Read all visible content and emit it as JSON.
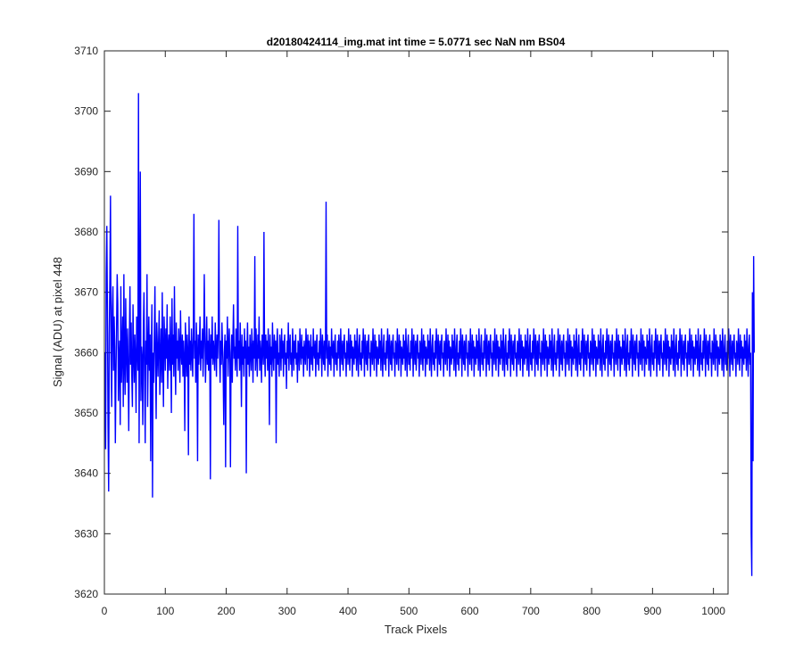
{
  "chart_data": {
    "type": "line",
    "title": "d20180424114_img.mat int time = 5.0771 sec  NaN nm BS04",
    "xlabel": "Track Pixels",
    "ylabel": "Signal (ADU) at pixel 448",
    "xlim": [
      0,
      1024
    ],
    "ylim": [
      3620,
      3710
    ],
    "xticks": [
      0,
      100,
      200,
      300,
      400,
      500,
      600,
      700,
      800,
      900,
      1000
    ],
    "yticks": [
      3620,
      3630,
      3640,
      3650,
      3660,
      3670,
      3680,
      3690,
      3700,
      3710
    ],
    "grid": false,
    "series_color": "#0000ff",
    "series": [
      {
        "x_start": 1,
        "x_step": 1,
        "values": [
          3660,
          3644,
          3673,
          3681,
          3667,
          3648,
          3637,
          3663,
          3672,
          3686,
          3659,
          3651,
          3667,
          3671,
          3657,
          3666,
          3661,
          3645,
          3656,
          3664,
          3673,
          3668,
          3652,
          3659,
          3662,
          3648,
          3671,
          3655,
          3660,
          3666,
          3651,
          3673,
          3658,
          3653,
          3669,
          3660,
          3655,
          3664,
          3657,
          3647,
          3662,
          3671,
          3658,
          3665,
          3656,
          3651,
          3668,
          3660,
          3655,
          3663,
          3659,
          3650,
          3666,
          3661,
          3657,
          3703,
          3645,
          3667,
          3690,
          3652,
          3661,
          3659,
          3648,
          3664,
          3670,
          3656,
          3645,
          3662,
          3658,
          3673,
          3651,
          3660,
          3666,
          3657,
          3663,
          3642,
          3659,
          3668,
          3636,
          3660,
          3655,
          3663,
          3671,
          3658,
          3649,
          3665,
          3661,
          3656,
          3662,
          3667,
          3653,
          3659,
          3664,
          3655,
          3670,
          3659,
          3651,
          3666,
          3662,
          3657,
          3664,
          3659,
          3668,
          3654,
          3661,
          3663,
          3657,
          3666,
          3660,
          3650,
          3669,
          3658,
          3663,
          3656,
          3671,
          3660,
          3653,
          3665,
          3659,
          3662,
          3657,
          3664,
          3661,
          3655,
          3667,
          3660,
          3658,
          3663,
          3656,
          3662,
          3659,
          3647,
          3665,
          3661,
          3656,
          3663,
          3660,
          3643,
          3666,
          3658,
          3662,
          3657,
          3664,
          3660,
          3656,
          3663,
          3683,
          3659,
          3662,
          3655,
          3665,
          3660,
          3642,
          3663,
          3658,
          3661,
          3666,
          3657,
          3662,
          3659,
          3664,
          3656,
          3661,
          3673,
          3663,
          3655,
          3660,
          3666,
          3658,
          3662,
          3657,
          3664,
          3661,
          3639,
          3663,
          3659,
          3666,
          3658,
          3662,
          3660,
          3657,
          3665,
          3661,
          3656,
          3663,
          3659,
          3664,
          3682,
          3660,
          3655,
          3662,
          3658,
          3665,
          3661,
          3657,
          3648,
          3660,
          3663,
          3641,
          3662,
          3659,
          3666,
          3656,
          3661,
          3664,
          3658,
          3641,
          3660,
          3663,
          3655,
          3662,
          3668,
          3659,
          3661,
          3657,
          3664,
          3660,
          3656,
          3681,
          3659,
          3662,
          3657,
          3665,
          3660,
          3651,
          3663,
          3658,
          3661,
          3656,
          3664,
          3659,
          3662,
          3640,
          3660,
          3665,
          3658,
          3661,
          3656,
          3663,
          3660,
          3657,
          3664,
          3661,
          3655,
          3662,
          3659,
          3676,
          3657,
          3664,
          3660,
          3656,
          3663,
          3659,
          3666,
          3657,
          3662,
          3660,
          3655,
          3663,
          3661,
          3658,
          3680,
          3660,
          3656,
          3663,
          3659,
          3662,
          3657,
          3664,
          3660,
          3648,
          3663,
          3658,
          3661,
          3656,
          3665,
          3660,
          3657,
          3663,
          3659,
          3662,
          3645,
          3661,
          3664,
          3658,
          3660,
          3656,
          3663,
          3661,
          3657,
          3664,
          3659,
          3662,
          3656,
          3661,
          3663,
          3658,
          3660,
          3654,
          3662,
          3659,
          3665,
          3657,
          3661,
          3663,
          3658,
          3660,
          3656,
          3664,
          3661,
          3657,
          3662,
          3659,
          3663,
          3658,
          3660,
          3655,
          3662,
          3661,
          3657,
          3664,
          3660,
          3658,
          3663,
          3659,
          3661,
          3656,
          3662,
          3660,
          3658,
          3664,
          3661,
          3657,
          3663,
          3659,
          3662,
          3656,
          3660,
          3663,
          3658,
          3661,
          3657,
          3664,
          3660,
          3659,
          3662,
          3656,
          3661,
          3663,
          3658,
          3660,
          3657,
          3662,
          3659,
          3664,
          3661,
          3656,
          3663,
          3660,
          3658,
          3662,
          3657,
          3661,
          3685,
          3659,
          3663,
          3656,
          3660,
          3662,
          3658,
          3661,
          3657,
          3664,
          3660,
          3659,
          3662,
          3656,
          3661,
          3663,
          3658,
          3660,
          3657,
          3662,
          3659,
          3663,
          3661,
          3656,
          3664,
          3660,
          3658,
          3662,
          3657,
          3661,
          3663,
          3659,
          3660,
          3656,
          3662,
          3661,
          3658,
          3664,
          3660,
          3657,
          3663,
          3659,
          3662,
          3656,
          3661,
          3660,
          3658,
          3663,
          3659,
          3662,
          3657,
          3664,
          3660,
          3656,
          3661,
          3663,
          3658,
          3660,
          3657,
          3662,
          3659,
          3664,
          3661,
          3656,
          3663,
          3660,
          3658,
          3662,
          3657,
          3661,
          3663,
          3659,
          3660,
          3656,
          3662,
          3661,
          3658,
          3664,
          3660,
          3657,
          3663,
          3659,
          3662,
          3656,
          3661,
          3660,
          3658,
          3663,
          3659,
          3662,
          3657,
          3664,
          3660,
          3656,
          3661,
          3663,
          3658,
          3660,
          3657,
          3662,
          3659,
          3664,
          3661,
          3656,
          3663,
          3660,
          3658,
          3662,
          3657,
          3661,
          3663,
          3659,
          3660,
          3656,
          3662,
          3661,
          3658,
          3664,
          3660,
          3657,
          3663,
          3659,
          3662,
          3656,
          3661,
          3660,
          3658,
          3663,
          3659,
          3662,
          3657,
          3664,
          3660,
          3656,
          3661,
          3663,
          3658,
          3660,
          3657,
          3662,
          3659,
          3664,
          3661,
          3656,
          3663,
          3660,
          3658,
          3662,
          3657,
          3661,
          3663,
          3659,
          3660,
          3656,
          3662,
          3661,
          3658,
          3664,
          3660,
          3657,
          3663,
          3659,
          3662,
          3656,
          3661,
          3660,
          3658,
          3663,
          3659,
          3662,
          3657,
          3664,
          3660,
          3656,
          3661,
          3663,
          3658,
          3660,
          3657,
          3662,
          3659,
          3664,
          3661,
          3656,
          3663,
          3660,
          3658,
          3662,
          3657,
          3661,
          3663,
          3659,
          3660,
          3656,
          3662,
          3661,
          3658,
          3664,
          3660,
          3657,
          3663,
          3659,
          3662,
          3656,
          3661,
          3660,
          3658,
          3663,
          3659,
          3662,
          3657,
          3664,
          3660,
          3656,
          3661,
          3663,
          3658,
          3660,
          3657,
          3662,
          3659,
          3664,
          3661,
          3656,
          3663,
          3660,
          3658,
          3662,
          3657,
          3661,
          3663,
          3659,
          3660,
          3656,
          3662,
          3661,
          3658,
          3664,
          3660,
          3657,
          3663,
          3659,
          3662,
          3656,
          3661,
          3660,
          3658,
          3663,
          3659,
          3662,
          3657,
          3664,
          3660,
          3656,
          3661,
          3663,
          3658,
          3660,
          3657,
          3662,
          3659,
          3664,
          3661,
          3656,
          3663,
          3660,
          3658,
          3662,
          3657,
          3661,
          3663,
          3659,
          3660,
          3656,
          3662,
          3661,
          3658,
          3664,
          3660,
          3657,
          3663,
          3659,
          3662,
          3656,
          3661,
          3660,
          3658,
          3663,
          3659,
          3662,
          3657,
          3664,
          3660,
          3656,
          3661,
          3663,
          3658,
          3660,
          3657,
          3662,
          3659,
          3664,
          3661,
          3656,
          3663,
          3660,
          3658,
          3662,
          3657,
          3661,
          3663,
          3659,
          3660,
          3656,
          3662,
          3661,
          3658,
          3664,
          3660,
          3657,
          3663,
          3659,
          3662,
          3656,
          3661,
          3660,
          3658,
          3663,
          3659,
          3662,
          3657,
          3664,
          3660,
          3656,
          3661,
          3663,
          3658,
          3660,
          3657,
          3662,
          3659,
          3664,
          3661,
          3656,
          3663,
          3660,
          3658,
          3662,
          3657,
          3661,
          3663,
          3659,
          3660,
          3656,
          3662,
          3661,
          3658,
          3664,
          3660,
          3657,
          3663,
          3659,
          3662,
          3656,
          3661,
          3660,
          3658,
          3663,
          3659,
          3662,
          3657,
          3664,
          3660,
          3656,
          3661,
          3663,
          3658,
          3660,
          3657,
          3662,
          3659,
          3664,
          3661,
          3656,
          3663,
          3660,
          3658,
          3662,
          3657,
          3661,
          3663,
          3659,
          3660,
          3656,
          3662,
          3661,
          3658,
          3664,
          3660,
          3657,
          3663,
          3659,
          3662,
          3656,
          3661,
          3660,
          3658,
          3663,
          3659,
          3662,
          3657,
          3664,
          3660,
          3656,
          3661,
          3663,
          3658,
          3660,
          3657,
          3662,
          3659,
          3664,
          3661,
          3656,
          3663,
          3660,
          3658,
          3662,
          3657,
          3661,
          3663,
          3659,
          3660,
          3656,
          3662,
          3661,
          3658,
          3664,
          3660,
          3657,
          3663,
          3659,
          3662,
          3656,
          3661,
          3660,
          3658,
          3663,
          3659,
          3662,
          3657,
          3664,
          3660,
          3656,
          3661,
          3663,
          3658,
          3660,
          3657,
          3662,
          3659,
          3664,
          3661,
          3656,
          3663,
          3660,
          3658,
          3662,
          3657,
          3661,
          3663,
          3659,
          3660,
          3656,
          3662,
          3661,
          3658,
          3664,
          3660,
          3657,
          3663,
          3659,
          3662,
          3656,
          3661,
          3660,
          3658,
          3663,
          3659,
          3662,
          3657,
          3664,
          3660,
          3656,
          3661,
          3663,
          3658,
          3660,
          3657,
          3662,
          3659,
          3664,
          3661,
          3656,
          3663,
          3660,
          3658,
          3662,
          3657,
          3661,
          3663,
          3659,
          3660,
          3656,
          3662,
          3661,
          3658,
          3664,
          3660,
          3657,
          3663,
          3659,
          3662,
          3656,
          3661,
          3660,
          3658,
          3663,
          3659,
          3662,
          3657,
          3664,
          3660,
          3656,
          3661,
          3663,
          3658,
          3660,
          3657,
          3662,
          3659,
          3664,
          3661,
          3656,
          3663,
          3660,
          3658,
          3662,
          3657,
          3661,
          3663,
          3659,
          3660,
          3656,
          3662,
          3661,
          3658,
          3664,
          3660,
          3657,
          3663,
          3659,
          3662,
          3656,
          3661,
          3660,
          3658,
          3663,
          3659,
          3662,
          3657,
          3664,
          3660,
          3656,
          3661,
          3663,
          3658,
          3660,
          3657,
          3662,
          3659,
          3664,
          3661,
          3656,
          3663,
          3660,
          3658,
          3662,
          3657,
          3661,
          3663,
          3659,
          3660,
          3656,
          3662,
          3661,
          3658,
          3664,
          3660,
          3657,
          3663,
          3659,
          3662,
          3656,
          3661,
          3660,
          3658,
          3663,
          3659,
          3662,
          3657,
          3664,
          3660,
          3656,
          3661,
          3663,
          3658,
          3660,
          3657,
          3662,
          3659,
          3664,
          3661,
          3656,
          3663,
          3660,
          3658,
          3662,
          3657,
          3661,
          3663,
          3659,
          3660,
          3656,
          3662,
          3661,
          3658,
          3664,
          3660,
          3657,
          3663,
          3659,
          3662,
          3656,
          3661,
          3660,
          3658,
          3663,
          3659,
          3662,
          3657,
          3664,
          3660,
          3656,
          3661,
          3663,
          3658,
          3660,
          3657,
          3662,
          3659,
          3664,
          3661,
          3656,
          3663,
          3660,
          3658,
          3662,
          3657,
          3661,
          3663,
          3659,
          3660,
          3656,
          3662,
          3661,
          3658,
          3664,
          3660,
          3657,
          3663,
          3659,
          3662,
          3656,
          3661,
          3660,
          3658,
          3663,
          3659,
          3662,
          3657,
          3664,
          3660,
          3656,
          3661,
          3663,
          3658,
          3660,
          3630,
          3623,
          3670,
          3642,
          3676,
          3660
        ]
      }
    ]
  }
}
